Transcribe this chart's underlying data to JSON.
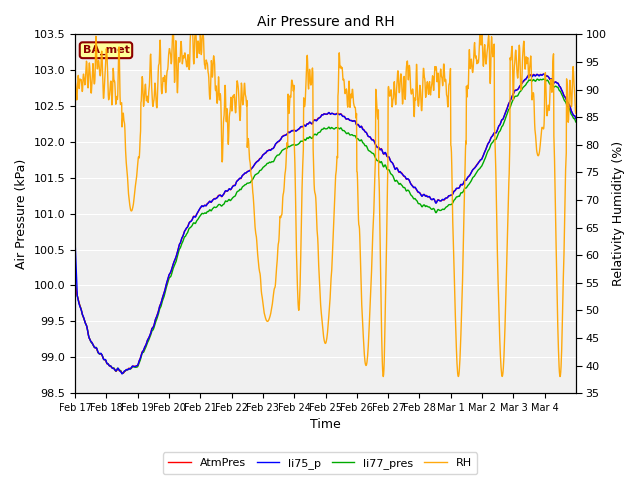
{
  "title": "Air Pressure and RH",
  "xlabel": "Time",
  "ylabel_left": "Air Pressure (kPa)",
  "ylabel_right": "Relativity Humidity (%)",
  "station_label": "BA_met",
  "ylim_left": [
    98.5,
    103.5
  ],
  "ylim_right": [
    35,
    100
  ],
  "yticks_left": [
    98.5,
    99.0,
    99.5,
    100.0,
    100.5,
    101.0,
    101.5,
    102.0,
    102.5,
    103.0,
    103.5
  ],
  "yticks_right": [
    35,
    40,
    45,
    50,
    55,
    60,
    65,
    70,
    75,
    80,
    85,
    90,
    95,
    100
  ],
  "x_tick_labels": [
    "Feb 17",
    "Feb 18",
    "Feb 19",
    "Feb 20",
    "Feb 21",
    "Feb 22",
    "Feb 23",
    "Feb 24",
    "Feb 25",
    "Feb 26",
    "Feb 27",
    "Feb 28",
    "Mar 1",
    "Mar 2",
    "Mar 3",
    "Mar 4"
  ],
  "colors": {
    "AtmPres": "#ff0000",
    "li75_p": "#0000ff",
    "li77_pres": "#00aa00",
    "RH": "#ffa500"
  },
  "legend_labels": [
    "AtmPres",
    "li75_p",
    "li77_pres",
    "RH"
  ],
  "bg_color": "#e8e8e8",
  "plot_bg_color": "#f0f0f0",
  "grid_color": "#ffffff",
  "linewidth": 1.0,
  "title_fontsize": 10,
  "label_fontsize": 9,
  "tick_fontsize": 8,
  "legend_fontsize": 8
}
